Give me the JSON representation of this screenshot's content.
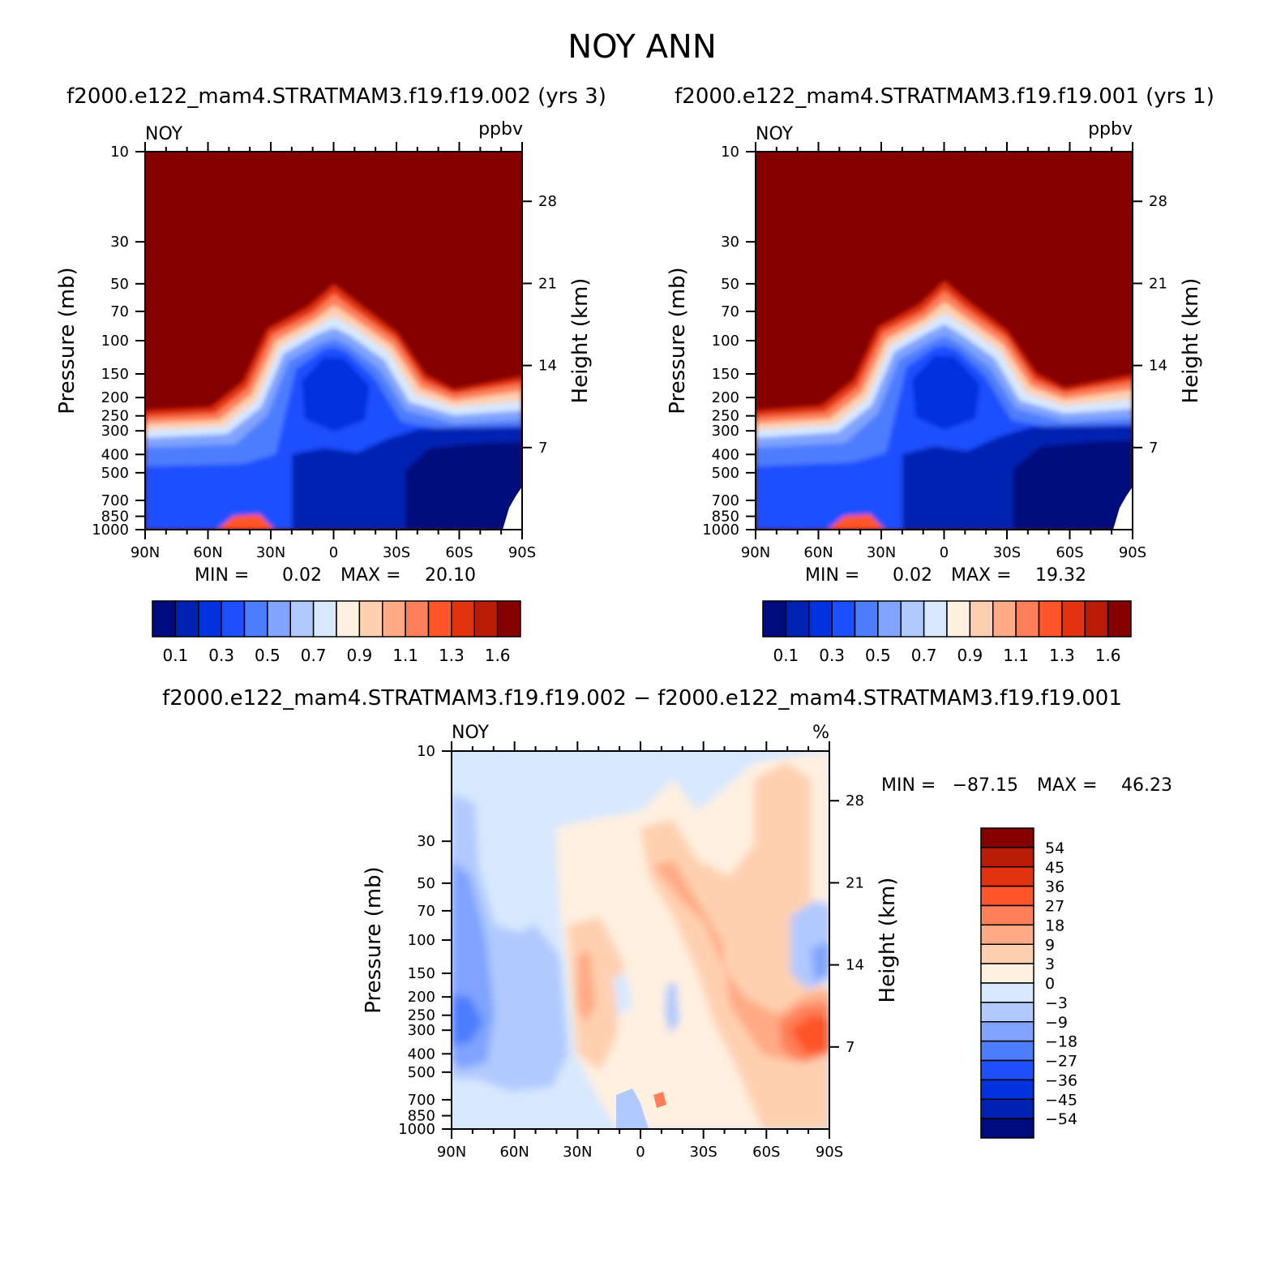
{
  "figure": {
    "title": "NOY ANN",
    "diff_title": "f2000.e122_mam4.STRATMAM3.f19.f19.002 − f2000.e122_mam4.STRATMAM3.f19.f19.001"
  },
  "colors": {
    "abs_levels": [
      "#000c7d",
      "#0022b3",
      "#0033de",
      "#1e4fff",
      "#4d7dff",
      "#7fa3ff",
      "#b0c9ff",
      "#d7e8ff",
      "#fff0e0",
      "#ffd0b0",
      "#ffab85",
      "#ff7f58",
      "#ff5528",
      "#e0320d",
      "#b81c08",
      "#850000"
    ],
    "diff_levels": [
      "#000c7d",
      "#0022b3",
      "#0033de",
      "#1e4fff",
      "#4d7dff",
      "#7fa3ff",
      "#b0c9ff",
      "#d7e8ff",
      "#fff0e0",
      "#ffd0b0",
      "#ffab85",
      "#ff7f58",
      "#ff5528",
      "#e0320d",
      "#b81c08",
      "#850000"
    ]
  },
  "chart_data": [
    {
      "type": "heatmap",
      "title": "f2000.e122_mam4.STRATMAM3.f19.f19.002 (yrs 3)",
      "variable": "NOY",
      "units": "ppbv",
      "xlabel": "",
      "ylabel": "Pressure (mb)",
      "y2label": "Height (km)",
      "xticks": [
        "90N",
        "60N",
        "30N",
        "0",
        "30S",
        "60S",
        "90S"
      ],
      "yticks": [
        "10",
        "30",
        "50",
        "70",
        "100",
        "150",
        "200",
        "250",
        "300",
        "400",
        "500",
        "700",
        "850",
        "1000"
      ],
      "y2ticks": [
        "28",
        "21",
        "14",
        "7"
      ],
      "ylim": [
        1000,
        10
      ],
      "min_label": "MIN =",
      "min_value": "0.02",
      "max_label": "MAX =",
      "max_value": "20.10",
      "colorbar_labels": [
        "0.1",
        "0.3",
        "0.5",
        "0.7",
        "0.9",
        "1.1",
        "1.3",
        "1.6"
      ],
      "colorbar_levels": [
        0.1,
        0.2,
        0.3,
        0.4,
        0.5,
        0.6,
        0.7,
        0.8,
        0.9,
        1.0,
        1.1,
        1.2,
        1.3,
        1.4,
        1.6
      ]
    },
    {
      "type": "heatmap",
      "title": "f2000.e122_mam4.STRATMAM3.f19.f19.001 (yrs 1)",
      "variable": "NOY",
      "units": "ppbv",
      "xlabel": "",
      "ylabel": "Pressure (mb)",
      "y2label": "Height (km)",
      "xticks": [
        "90N",
        "60N",
        "30N",
        "0",
        "30S",
        "60S",
        "90S"
      ],
      "yticks": [
        "10",
        "30",
        "50",
        "70",
        "100",
        "150",
        "200",
        "250",
        "300",
        "400",
        "500",
        "700",
        "850",
        "1000"
      ],
      "y2ticks": [
        "28",
        "21",
        "14",
        "7"
      ],
      "ylim": [
        1000,
        10
      ],
      "min_label": "MIN =",
      "min_value": "0.02",
      "max_label": "MAX =",
      "max_value": "19.32",
      "colorbar_labels": [
        "0.1",
        "0.3",
        "0.5",
        "0.7",
        "0.9",
        "1.1",
        "1.3",
        "1.6"
      ],
      "colorbar_levels": [
        0.1,
        0.2,
        0.3,
        0.4,
        0.5,
        0.6,
        0.7,
        0.8,
        0.9,
        1.0,
        1.1,
        1.2,
        1.3,
        1.4,
        1.6
      ]
    },
    {
      "type": "heatmap",
      "title": "f2000.e122_mam4.STRATMAM3.f19.f19.002 − f2000.e122_mam4.STRATMAM3.f19.f19.001",
      "variable": "NOY",
      "units": "%",
      "xlabel": "",
      "ylabel": "Pressure (mb)",
      "y2label": "Height (km)",
      "xticks": [
        "90N",
        "60N",
        "30N",
        "0",
        "30S",
        "60S",
        "90S"
      ],
      "yticks": [
        "10",
        "30",
        "50",
        "70",
        "100",
        "150",
        "200",
        "250",
        "300",
        "400",
        "500",
        "700",
        "850",
        "1000"
      ],
      "y2ticks": [
        "28",
        "21",
        "14",
        "7"
      ],
      "ylim": [
        1000,
        10
      ],
      "min_label": "MIN =",
      "min_value": "−87.15",
      "max_label": "MAX =",
      "max_value": "46.23",
      "colorbar_labels": [
        "54",
        "45",
        "36",
        "27",
        "18",
        "9",
        "3",
        "0",
        "−3",
        "−9",
        "−18",
        "−27",
        "−36",
        "−45",
        "−54"
      ],
      "colorbar_levels": [
        -54,
        -45,
        -36,
        -27,
        -18,
        -9,
        -3,
        0,
        3,
        9,
        18,
        27,
        36,
        45,
        54
      ]
    }
  ]
}
